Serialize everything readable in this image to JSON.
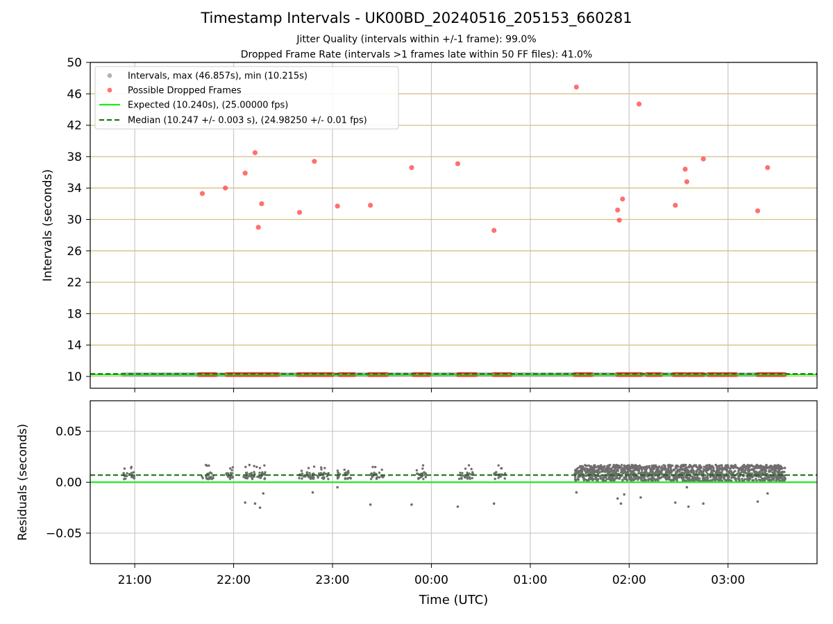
{
  "chart_data": [
    {
      "type": "scatter",
      "title": "Timestamp Intervals - UK00BD_20240516_205153_660281",
      "subtitle_lines": [
        "Jitter Quality (intervals within +/-1 frame): 99.0%",
        "Dropped Frame Rate (intervals >1 frames late within 50 FF files): 41.0%"
      ],
      "ylabel": "Intervals (seconds)",
      "ylim": [
        8.5,
        50
      ],
      "yticks": [
        10,
        14,
        18,
        22,
        26,
        30,
        34,
        38,
        42,
        46,
        50
      ],
      "xlim_hours": [
        20.55,
        27.9
      ],
      "grid": "vertical gray, horizontal goldenrod",
      "legend_placement": "upper-left",
      "legend": [
        {
          "label": "Intervals, max (46.857s), min (10.215s)",
          "kind": "point",
          "color": "#a0a0a0"
        },
        {
          "label": "Possible Dropped Frames",
          "kind": "point",
          "color": "#ff5050"
        },
        {
          "label": "Expected (10.240s), (25.00000 fps)",
          "kind": "line",
          "color": "#1ee81e"
        },
        {
          "label": "Median (10.247 +/- 0.003 s), (24.98250 +/- 0.01 fps)",
          "kind": "dashed",
          "color": "#0a6e0a"
        }
      ],
      "expected_interval": 10.24,
      "median_interval": 10.247,
      "normal_interval_span_hours": [
        20.88,
        27.58
      ],
      "dropped_points": [
        {
          "t": "21:41",
          "interval": 33.3
        },
        {
          "t": "21:55",
          "interval": 34.0
        },
        {
          "t": "22:07",
          "interval": 35.9
        },
        {
          "t": "22:13",
          "interval": 38.5
        },
        {
          "t": "22:15",
          "interval": 29.0
        },
        {
          "t": "22:17",
          "interval": 32.0
        },
        {
          "t": "22:40",
          "interval": 30.9
        },
        {
          "t": "22:49",
          "interval": 37.4
        },
        {
          "t": "23:03",
          "interval": 31.7
        },
        {
          "t": "23:23",
          "interval": 31.8
        },
        {
          "t": "23:48",
          "interval": 36.6
        },
        {
          "t": "00:16",
          "interval": 37.1
        },
        {
          "t": "00:38",
          "interval": 28.6
        },
        {
          "t": "01:28",
          "interval": 46.857
        },
        {
          "t": "01:53",
          "interval": 31.2
        },
        {
          "t": "01:54",
          "interval": 29.9
        },
        {
          "t": "01:56",
          "interval": 32.6
        },
        {
          "t": "02:06",
          "interval": 44.7
        },
        {
          "t": "02:28",
          "interval": 31.8
        },
        {
          "t": "02:34",
          "interval": 36.4
        },
        {
          "t": "02:35",
          "interval": 34.8
        },
        {
          "t": "02:45",
          "interval": 37.7
        },
        {
          "t": "03:18",
          "interval": 31.1
        },
        {
          "t": "03:24",
          "interval": 36.6
        }
      ],
      "dropped_baseline_clusters_hours": [
        [
          21.65,
          21.82
        ],
        [
          21.93,
          22.1
        ],
        [
          22.12,
          22.45
        ],
        [
          22.65,
          22.85
        ],
        [
          22.87,
          23.0
        ],
        [
          23.07,
          23.22
        ],
        [
          23.37,
          23.55
        ],
        [
          23.82,
          23.98
        ],
        [
          24.27,
          24.45
        ],
        [
          24.63,
          24.8
        ],
        [
          25.45,
          25.62
        ],
        [
          25.88,
          26.12
        ],
        [
          26.18,
          26.32
        ],
        [
          26.45,
          26.57
        ],
        [
          26.6,
          26.75
        ],
        [
          26.8,
          26.9
        ],
        [
          26.92,
          27.08
        ],
        [
          27.3,
          27.57
        ]
      ]
    },
    {
      "type": "scatter",
      "xlabel": "Time (UTC)",
      "ylabel": "Residuals (seconds)",
      "ylim": [
        -0.08,
        0.08
      ],
      "yticks": [
        0.05,
        0.0,
        -0.05
      ],
      "ytick_labels": [
        "0.05",
        "0.00",
        "−0.05"
      ],
      "xticks_hours": [
        21,
        22,
        23,
        24,
        25,
        26,
        27
      ],
      "xtick_labels": [
        "21:00",
        "22:00",
        "23:00",
        "00:00",
        "01:00",
        "02:00",
        "03:00"
      ],
      "xlim_hours": [
        20.55,
        27.9
      ],
      "grid": "on",
      "expected_residual": 0.0,
      "median_residual": 0.007,
      "point_color": "#6e6e6e",
      "sparse_residual_band": [
        0.003,
        0.01
      ],
      "dense_region_hours": [
        25.45,
        27.58
      ],
      "dense_residual_band": [
        0.001,
        0.017
      ],
      "sparse_cluster_hours": [
        [
          20.87,
          21.0
        ],
        [
          21.68,
          21.8
        ],
        [
          21.92,
          22.0
        ],
        [
          22.1,
          22.22
        ],
        [
          22.22,
          22.32
        ],
        [
          22.65,
          22.82
        ],
        [
          22.85,
          22.97
        ],
        [
          23.05,
          23.2
        ],
        [
          23.38,
          23.52
        ],
        [
          23.85,
          23.95
        ],
        [
          24.28,
          24.42
        ],
        [
          24.63,
          24.75
        ]
      ],
      "outliers": [
        {
          "t": "22:07",
          "residual": -0.02
        },
        {
          "t": "22:13",
          "residual": -0.021
        },
        {
          "t": "22:16",
          "residual": -0.025
        },
        {
          "t": "22:18",
          "residual": -0.011
        },
        {
          "t": "22:48",
          "residual": -0.01
        },
        {
          "t": "23:03",
          "residual": -0.005
        },
        {
          "t": "23:23",
          "residual": -0.022
        },
        {
          "t": "23:48",
          "residual": -0.022
        },
        {
          "t": "00:16",
          "residual": -0.024
        },
        {
          "t": "00:38",
          "residual": -0.021
        },
        {
          "t": "01:28",
          "residual": -0.01
        },
        {
          "t": "01:53",
          "residual": -0.016
        },
        {
          "t": "01:55",
          "residual": -0.021
        },
        {
          "t": "01:57",
          "residual": -0.012
        },
        {
          "t": "02:07",
          "residual": -0.015
        },
        {
          "t": "02:28",
          "residual": -0.02
        },
        {
          "t": "02:35",
          "residual": -0.005
        },
        {
          "t": "02:36",
          "residual": -0.024
        },
        {
          "t": "02:45",
          "residual": -0.021
        },
        {
          "t": "03:18",
          "residual": -0.019
        },
        {
          "t": "03:24",
          "residual": -0.011
        }
      ]
    }
  ]
}
